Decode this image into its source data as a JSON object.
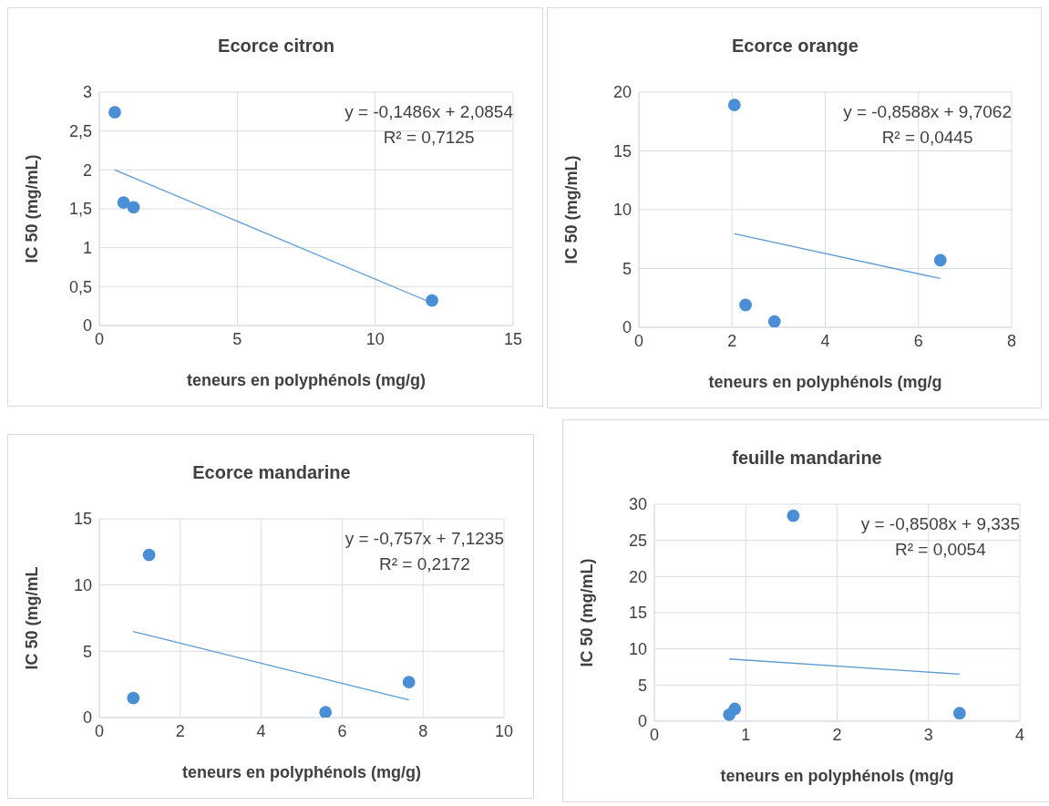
{
  "chart_data": [
    {
      "type": "scatter",
      "title": "Ecorce citron",
      "xlabel": "teneurs en polyphénols (mg/g)",
      "ylabel": "IC 50 (mg/mL)",
      "xlim": [
        0,
        15
      ],
      "xticks": [
        0,
        5,
        10,
        15
      ],
      "ylim": [
        0,
        3
      ],
      "yticks": [
        0,
        {
          "value": 0.5,
          "label": "0,5"
        },
        1,
        {
          "value": 1.5,
          "label": "1,5"
        },
        2,
        {
          "value": 2.5,
          "label": "2,5"
        },
        3
      ],
      "grid": true,
      "legend": false,
      "marker": "circle",
      "annotations": [
        "y = -0,1486x + 2,0854",
        "R² = 0,7125"
      ],
      "series": [
        {
          "color": "#4a8fd6",
          "x": [
            0.56,
            0.88,
            1.24,
            12.06
          ],
          "values": [
            2.74,
            1.58,
            1.52,
            0.32
          ]
        },
        {
          "type": "line",
          "color": "#5b9bd5",
          "marker": "none",
          "x": [
            0.56,
            12.06
          ],
          "values": [
            2.0,
            0.29
          ]
        }
      ]
    },
    {
      "type": "scatter",
      "title": "Ecorce orange",
      "xlabel": "teneurs en polyphénols (mg/g",
      "ylabel": "IC 50 (mg/mL)",
      "xlim": [
        0,
        8
      ],
      "xticks": [
        0,
        2,
        4,
        6,
        8
      ],
      "ylim": [
        0,
        20
      ],
      "yticks": [
        0,
        5,
        10,
        15,
        20
      ],
      "grid": true,
      "legend": false,
      "marker": "circle",
      "annotations": [
        "y = -0,8588x + 9,7062",
        "R² = 0,0445"
      ],
      "series": [
        {
          "color": "#4a8fd6",
          "x": [
            2.05,
            2.29,
            2.91,
            6.47
          ],
          "values": [
            18.9,
            1.9,
            0.5,
            5.7
          ]
        },
        {
          "type": "line",
          "color": "#5b9bd5",
          "marker": "none",
          "x": [
            2.05,
            6.47
          ],
          "values": [
            7.95,
            4.15
          ]
        }
      ]
    },
    {
      "type": "scatter",
      "title": "Ecorce mandarine",
      "xlabel": "teneurs en polyphénols (mg/g)",
      "ylabel": "IC 50 (mg/mL",
      "xlim": [
        0,
        10
      ],
      "xticks": [
        0,
        2,
        4,
        6,
        8,
        10
      ],
      "ylim": [
        0,
        15
      ],
      "yticks": [
        0,
        5,
        10,
        15
      ],
      "grid": true,
      "legend": false,
      "marker": "circle",
      "annotations": [
        "y = -0,757x + 7,1235",
        "R² = 0,2172"
      ],
      "series": [
        {
          "color": "#4a8fd6",
          "x": [
            0.84,
            1.23,
            5.59,
            7.65
          ],
          "values": [
            1.47,
            12.27,
            0.4,
            2.68
          ]
        },
        {
          "type": "line",
          "color": "#5b9bd5",
          "marker": "none",
          "x": [
            0.84,
            7.65
          ],
          "values": [
            6.49,
            1.33
          ]
        }
      ]
    },
    {
      "type": "scatter",
      "title": "feuille mandarine",
      "xlabel": "teneurs en polyphénols (mg/g",
      "ylabel": "IC 50  (mg/mL)",
      "xlim": [
        0,
        4
      ],
      "xticks": [
        0,
        1,
        2,
        3,
        4
      ],
      "ylim": [
        0,
        30
      ],
      "yticks": [
        0,
        5,
        10,
        15,
        20,
        25,
        30
      ],
      "grid": true,
      "legend": false,
      "marker": "circle",
      "annotations": [
        "y = -0,8508x + 9,335",
        "R² = 0,0054"
      ],
      "series": [
        {
          "color": "#4a8fd6",
          "x": [
            0.82,
            0.88,
            1.52,
            3.34
          ],
          "values": [
            0.9,
            1.7,
            28.4,
            1.1
          ]
        },
        {
          "type": "line",
          "color": "#5b9bd5",
          "marker": "none",
          "x": [
            0.82,
            3.34
          ],
          "values": [
            8.6,
            6.5
          ]
        }
      ]
    }
  ]
}
